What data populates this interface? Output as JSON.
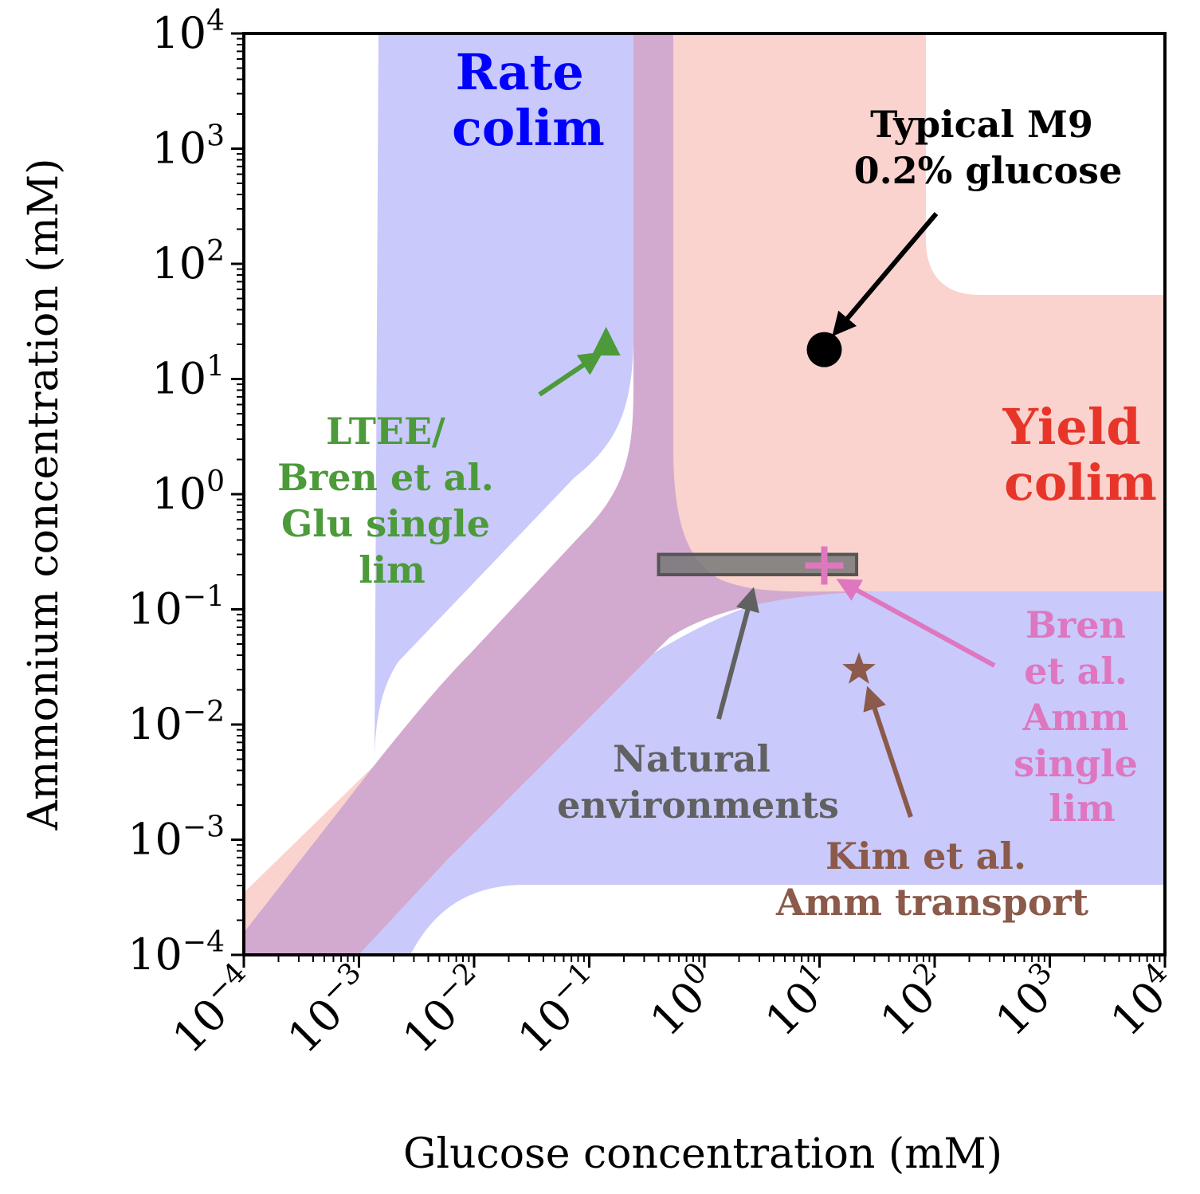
{
  "chart_data": {
    "type": "scatter",
    "xlabel": "Glucose concentration (mM)",
    "ylabel": "Ammonium concentration (mM)",
    "xscale": "log",
    "yscale": "log",
    "xlim": [
      0.0001,
      10000
    ],
    "ylim": [
      0.0001,
      10000
    ],
    "ticks": [
      {
        "base": "10",
        "exp": "−4"
      },
      {
        "base": "10",
        "exp": "−3"
      },
      {
        "base": "10",
        "exp": "−2"
      },
      {
        "base": "10",
        "exp": "−1"
      },
      {
        "base": "10",
        "exp": "0"
      },
      {
        "base": "10",
        "exp": "1"
      },
      {
        "base": "10",
        "exp": "2"
      },
      {
        "base": "10",
        "exp": "3"
      },
      {
        "base": "10",
        "exp": "4"
      }
    ],
    "regions": [
      {
        "name": "Rate colim",
        "label_lines": [
          "Rate",
          "colim"
        ],
        "color": "#0000ff",
        "fill": "#c9c9fb"
      },
      {
        "name": "Yield colim",
        "label_lines": [
          "Yield",
          "colim"
        ],
        "color": "#e8352a",
        "fill": "#fad3ce"
      }
    ],
    "overlap_fill": "#d3aacf",
    "points": [
      {
        "name": "Typical M9 0.2% glucose",
        "label_lines": [
          "Typical M9",
          "0.2% glucose"
        ],
        "x": 11,
        "y": 18,
        "marker": "circle",
        "color": "#000000"
      },
      {
        "name": "LTEE/Bren et al. Glu single lim",
        "label_lines": [
          "LTEE/",
          "Bren et al.",
          "Glu single",
          "lim"
        ],
        "x": 0.14,
        "y": 20,
        "marker": "triangle",
        "color": "#4c9a3a"
      },
      {
        "name": "Bren et al. Amm single lim",
        "label_lines": [
          "Bren",
          "et al.",
          "Amm",
          "single",
          "lim"
        ],
        "x": 11,
        "y": 0.24,
        "marker": "plus",
        "color": "#de77c0"
      },
      {
        "name": "Kim et al. Amm transport",
        "label_lines": [
          "Kim et al.",
          "Amm transport"
        ],
        "x": 22,
        "y": 0.03,
        "marker": "star",
        "color": "#8b5a4a"
      }
    ],
    "boxes": [
      {
        "name": "Natural environments",
        "label_lines": [
          "Natural",
          "environments"
        ],
        "x_range": [
          0.4,
          21
        ],
        "y_range": [
          0.2,
          0.3
        ],
        "color": "#616161"
      }
    ]
  }
}
